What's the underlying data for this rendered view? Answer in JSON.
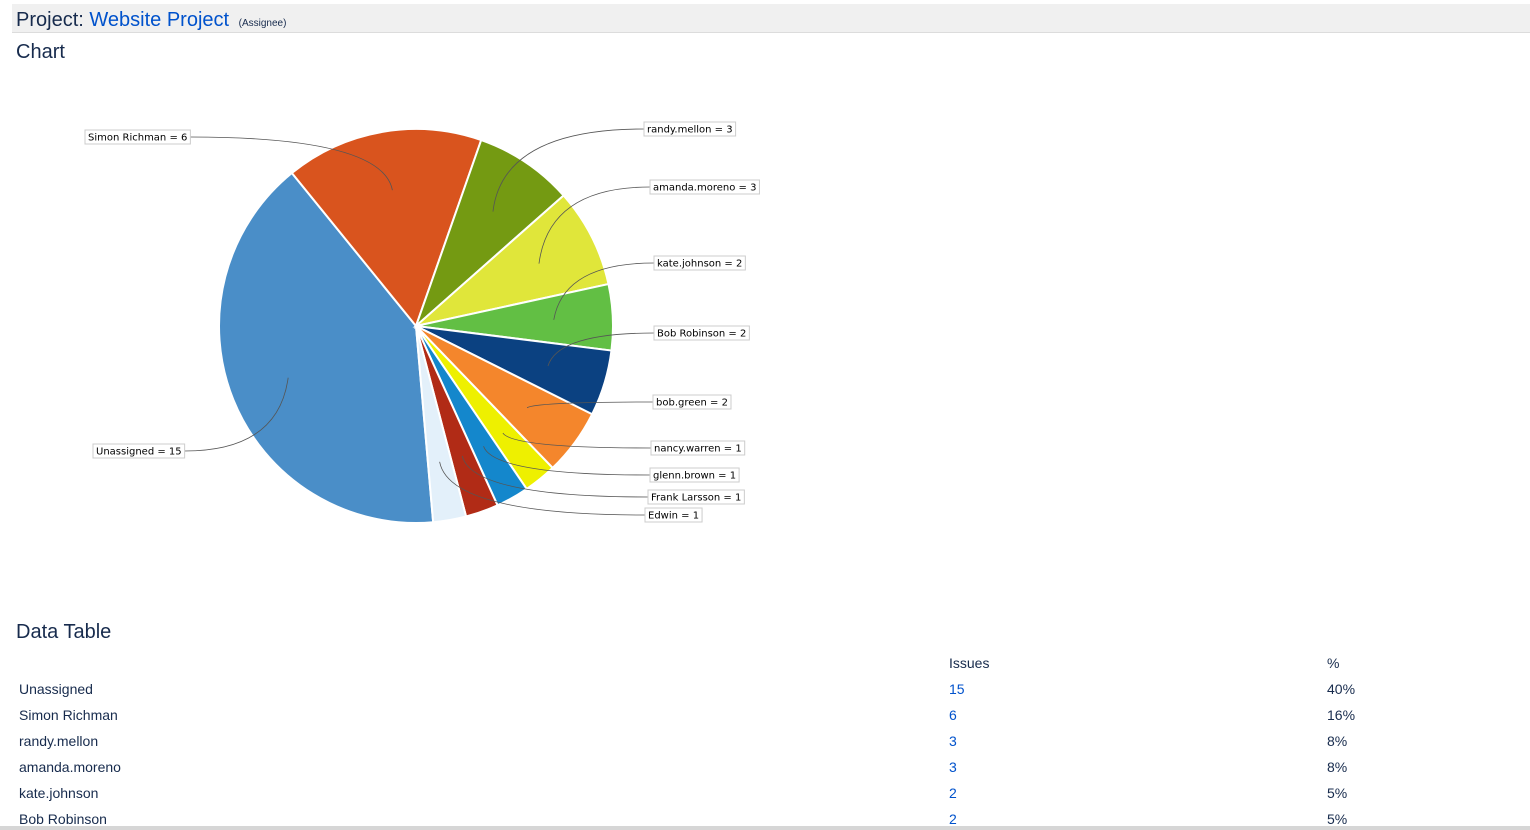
{
  "header": {
    "prefix": "Project:",
    "project_name": "Website Project",
    "statistic_type": "(Assignee)"
  },
  "sections": {
    "chart_heading": "Chart",
    "table_heading": "Data Table"
  },
  "chart_data": {
    "type": "pie",
    "slices": [
      {
        "label": "Unassigned = 15",
        "name": "Unassigned",
        "value": 15,
        "color": "#4a8ec8"
      },
      {
        "label": "Simon Richman = 6",
        "name": "Simon Richman",
        "value": 6,
        "color": "#d9541e"
      },
      {
        "label": "randy.mellon = 3",
        "name": "randy.mellon",
        "value": 3,
        "color": "#749a12"
      },
      {
        "label": "amanda.moreno = 3",
        "name": "amanda.moreno",
        "value": 3,
        "color": "#e0e63a"
      },
      {
        "label": "kate.johnson = 2",
        "name": "kate.johnson",
        "value": 2,
        "color": "#62bf44"
      },
      {
        "label": "Bob Robinson = 2",
        "name": "Bob Robinson",
        "value": 2,
        "color": "#0b4181"
      },
      {
        "label": "bob.green = 2",
        "name": "bob.green",
        "value": 2,
        "color": "#f4862c"
      },
      {
        "label": "nancy.warren = 1",
        "name": "nancy.warren",
        "value": 1,
        "color": "#eef000"
      },
      {
        "label": "glenn.brown = 1",
        "name": "glenn.brown",
        "value": 1,
        "color": "#1487cc"
      },
      {
        "label": "Frank Larsson = 1",
        "name": "Frank Larsson",
        "value": 1,
        "color": "#b12b16"
      },
      {
        "label": "Edwin = 1",
        "name": "Edwin",
        "value": 1,
        "color": "#e3f0fa"
      }
    ]
  },
  "table": {
    "headers": {
      "name": "",
      "issues": "Issues",
      "percent": "%"
    },
    "rows": [
      {
        "name": "Unassigned",
        "issues": "15",
        "percent": "40%"
      },
      {
        "name": "Simon Richman",
        "issues": "6",
        "percent": "16%"
      },
      {
        "name": "randy.mellon",
        "issues": "3",
        "percent": "8%"
      },
      {
        "name": "amanda.moreno",
        "issues": "3",
        "percent": "8%"
      },
      {
        "name": "kate.johnson",
        "issues": "2",
        "percent": "5%"
      },
      {
        "name": "Bob Robinson",
        "issues": "2",
        "percent": "5%"
      }
    ]
  }
}
